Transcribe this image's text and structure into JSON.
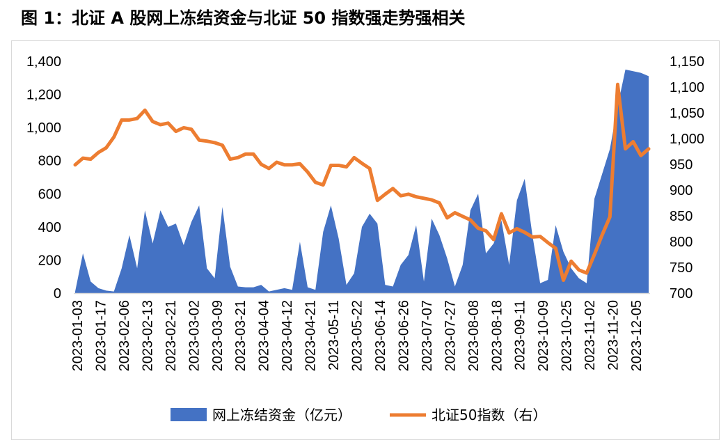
{
  "figure": {
    "title": "图 1：北证 A 股网上冻结资金与北证 50 指数强走势强相关"
  },
  "chart_data": {
    "type": "area+line",
    "x_tick_labels": [
      "2023-01-03",
      "2023-01-17",
      "2023-02-06",
      "2023-02-13",
      "2023-02-21",
      "2023-03-02",
      "2023-03-09",
      "2023-03-21",
      "2023-04-04",
      "2023-04-12",
      "2023-04-21",
      "2023-05-11",
      "2023-05-22",
      "2023-06-14",
      "2023-06-26",
      "2023-07-07",
      "2023-07-27",
      "2023-08-08",
      "2023-08-18",
      "2023-09-11",
      "2023-10-09",
      "2023-10-25",
      "2023-11-02",
      "2023-11-20",
      "2023-12-05"
    ],
    "y_left": {
      "ticks": [
        "0",
        "200",
        "400",
        "600",
        "800",
        "1,000",
        "1,200",
        "1,400"
      ],
      "min": 0,
      "max": 1400
    },
    "y_right": {
      "ticks": [
        "700",
        "750",
        "800",
        "850",
        "900",
        "950",
        "1,000",
        "1,050",
        "1,100",
        "1,150"
      ],
      "min": 700,
      "max": 1150
    },
    "series": [
      {
        "name": "网上冻结资金（亿元）",
        "type": "area",
        "axis": "left",
        "color": "#4472c4",
        "values": [
          10,
          240,
          70,
          30,
          15,
          10,
          150,
          350,
          150,
          500,
          300,
          500,
          400,
          420,
          290,
          430,
          530,
          150,
          90,
          520,
          160,
          40,
          35,
          35,
          50,
          10,
          20,
          30,
          20,
          310,
          35,
          20,
          370,
          530,
          330,
          50,
          120,
          400,
          480,
          420,
          50,
          40,
          170,
          230,
          410,
          70,
          450,
          350,
          210,
          40,
          170,
          500,
          600,
          240,
          300,
          440,
          170,
          560,
          690,
          350,
          60,
          80,
          410,
          250,
          150,
          90,
          60,
          570,
          720,
          870,
          1130,
          1350,
          1340,
          1330,
          1310
        ],
        "legend_label": "网上冻结资金（亿元）"
      },
      {
        "name": "北证50指数（右）",
        "type": "line",
        "axis": "right",
        "color": "#ed7d31",
        "values": [
          949,
          962,
          960,
          973,
          982,
          1003,
          1036,
          1036,
          1039,
          1055,
          1033,
          1027,
          1030,
          1014,
          1021,
          1018,
          997,
          995,
          992,
          987,
          960,
          963,
          970,
          970,
          950,
          942,
          954,
          949,
          949,
          951,
          935,
          915,
          910,
          948,
          948,
          945,
          963,
          952,
          942,
          880,
          892,
          903,
          889,
          892,
          887,
          884,
          881,
          875,
          846,
          856,
          849,
          842,
          826,
          821,
          804,
          854,
          817,
          825,
          818,
          809,
          810,
          798,
          787,
          725,
          762,
          745,
          739,
          775,
          813,
          848,
          1105,
          980,
          994,
          967,
          980
        ],
        "legend_label": "北证50指数（右）"
      }
    ],
    "legend": {
      "placement": "bottom"
    }
  }
}
